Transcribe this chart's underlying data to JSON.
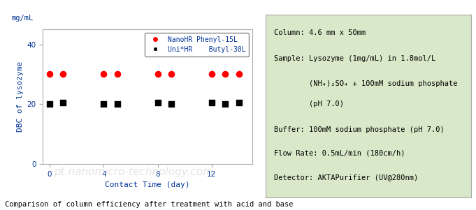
{
  "red_x": [
    0,
    1,
    4,
    5,
    8,
    9,
    12,
    13,
    14
  ],
  "red_y": [
    30,
    30,
    30,
    30,
    30,
    30,
    30,
    30,
    30
  ],
  "black_x": [
    0,
    1,
    4,
    5,
    8,
    9,
    12,
    13,
    14
  ],
  "black_y": [
    20,
    20.5,
    20,
    20,
    20.5,
    20,
    20.5,
    20,
    20.5
  ],
  "xlabel": "Contact Time (day)",
  "ylabel": "DBC of lysozyme",
  "mg_ml_label": "mg/mL",
  "xlim": [
    -0.5,
    15
  ],
  "ylim": [
    0,
    45
  ],
  "yticks": [
    0,
    20,
    40
  ],
  "xticks": [
    0,
    4,
    8,
    12
  ],
  "legend_label_red": "NanoHR Phenyl-15L",
  "legend_label_black": "Uni*HR    Butyl-30L",
  "red_color": "#ff0000",
  "black_color": "#000000",
  "text_color": "#003399",
  "info_box_color": "#d8e8c8",
  "info_lines": [
    "Column: 4.6 mm x 50mm",
    "Sample: Lysozyme (1mg/mL) in 1.8mol/L",
    "        (NH₄)₂SO₄ + 100mM sodium phosphate",
    "        (pH 7.0)",
    "Buffer: 100mM sodium phosphate (pH 7.0)",
    "Flow Rate: 0.5mL/min (180cm/h)",
    "Detector: AKTAPurifier (UV@280nm)"
  ],
  "bottom_text": "Comparison of column efficiency after treatment with acid and base",
  "watermark": "pt.nanomicro-technology.com"
}
